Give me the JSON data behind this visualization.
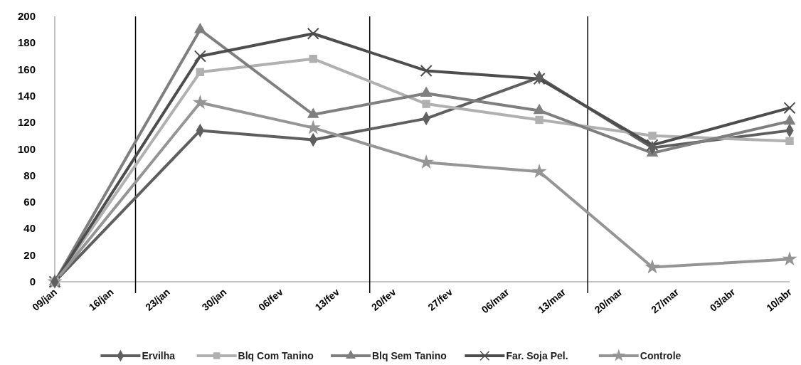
{
  "chart_data": {
    "type": "line",
    "x": [
      "--01-09",
      "--01-27",
      "--02-10",
      "--02-24",
      "--03-10",
      "--03-24",
      "--04-10"
    ],
    "series": [
      {
        "name": "Ervilha",
        "color": "#5f5f5f",
        "marker": "diamond",
        "values": [
          0,
          114,
          107,
          123,
          154,
          101,
          114
        ]
      },
      {
        "name": "Blq Com Tanino",
        "color": "#b0b0b0",
        "marker": "square",
        "values": [
          0,
          158,
          168,
          134,
          122,
          110,
          106
        ]
      },
      {
        "name": "Blq Sem Tanino",
        "color": "#7f7f7f",
        "marker": "triangle",
        "values": [
          0,
          190,
          126,
          142,
          129,
          97,
          121
        ]
      },
      {
        "name": "Far. Soja Pel.",
        "color": "#4d4d4d",
        "marker": "cross",
        "values": [
          0,
          170,
          187,
          159,
          153,
          103,
          131
        ]
      },
      {
        "name": "Controle",
        "color": "#959595",
        "marker": "star",
        "values": [
          0,
          135,
          116,
          90,
          83,
          11,
          17
        ]
      }
    ],
    "xlim": [
      "--01-09",
      "--04-10"
    ],
    "xticks": [
      {
        "value": "--01-09",
        "label": "09/jan"
      },
      {
        "value": "--01-16",
        "label": "16/jan"
      },
      {
        "value": "--01-23",
        "label": "23/jan"
      },
      {
        "value": "--01-30",
        "label": "30/jan"
      },
      {
        "value": "--02-06",
        "label": "06/fev"
      },
      {
        "value": "--02-13",
        "label": "13/fev"
      },
      {
        "value": "--02-20",
        "label": "20/fev"
      },
      {
        "value": "--02-27",
        "label": "27/fev"
      },
      {
        "value": "--03-06",
        "label": "06/mar"
      },
      {
        "value": "--03-13",
        "label": "13/mar"
      },
      {
        "value": "--03-20",
        "label": "20/mar"
      },
      {
        "value": "--03-27",
        "label": "27/mar"
      },
      {
        "value": "--04-03",
        "label": "03/abr"
      },
      {
        "value": "--04-10",
        "label": "10/abr"
      }
    ],
    "ylim": [
      0,
      200
    ],
    "yticks": [
      0,
      20,
      40,
      60,
      80,
      100,
      120,
      140,
      160,
      180,
      200
    ],
    "ref_lines": [
      {
        "axis": "x",
        "value": "--01-19",
        "color": "#000000"
      },
      {
        "axis": "x",
        "value": "--02-17",
        "color": "#000000"
      },
      {
        "axis": "x",
        "value": "--03-16",
        "color": "#000000"
      }
    ],
    "grid": false,
    "legend": "bottom",
    "line_style": "solid"
  }
}
